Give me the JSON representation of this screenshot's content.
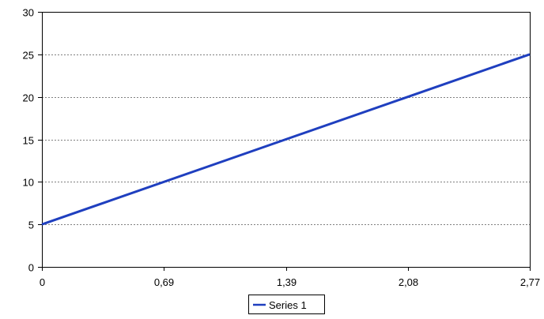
{
  "chart_data": {
    "type": "line",
    "title": "",
    "xlabel": "",
    "ylabel": "",
    "x_ticks": [
      "0",
      "0,69",
      "1,39",
      "2,08",
      "2,77"
    ],
    "x_tick_values": [
      0,
      0.6925,
      1.385,
      2.0775,
      2.77
    ],
    "y_ticks": [
      "0",
      "5",
      "10",
      "15",
      "20",
      "25",
      "30"
    ],
    "y_tick_values": [
      0,
      5,
      10,
      15,
      20,
      25,
      30
    ],
    "xlim": [
      0,
      2.77
    ],
    "ylim": [
      0,
      30
    ],
    "grid": "horizontal dotted",
    "legend_position": "bottom",
    "series": [
      {
        "name": "Series 1",
        "color": "#1f3fbf",
        "x": [
          0,
          2.77
        ],
        "y": [
          5,
          25
        ]
      }
    ]
  }
}
